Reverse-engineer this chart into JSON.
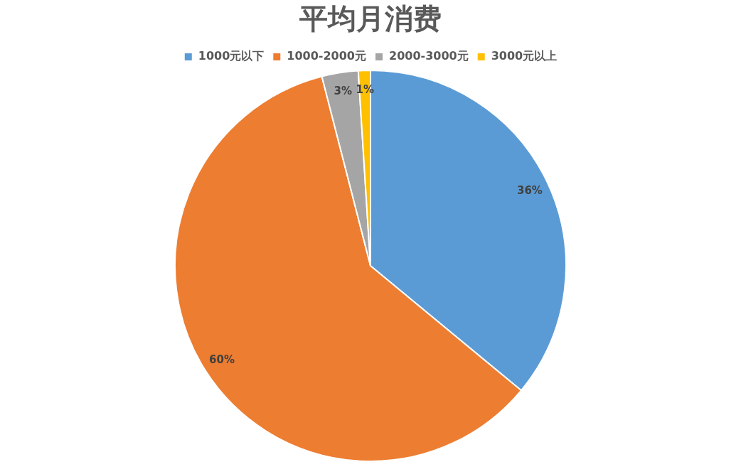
{
  "chart_data": {
    "type": "pie",
    "title": "平均月消费",
    "categories": [
      "1000元以下",
      "1000-2000元",
      "2000-3000元",
      "3000元以上"
    ],
    "values": [
      36,
      60,
      3,
      1
    ],
    "colors": [
      "#5b9bd5",
      "#ed7d31",
      "#a5a5a5",
      "#ffc000"
    ],
    "value_labels": [
      "36%",
      "60%",
      "3%",
      "1%"
    ],
    "legend": "top"
  }
}
